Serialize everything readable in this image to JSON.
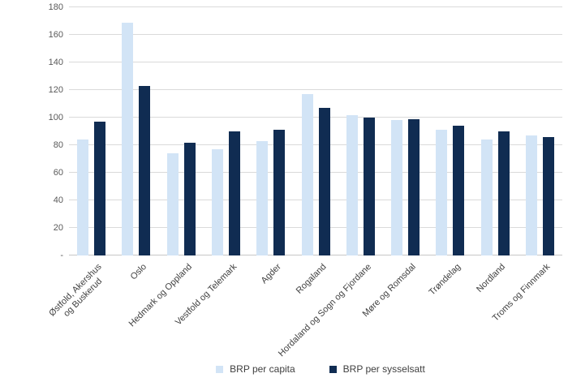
{
  "chart_data": {
    "type": "bar",
    "title": "",
    "xlabel": "",
    "ylabel": "",
    "categories": [
      "Østfold, Akershus\nog Buskerud",
      "Oslo",
      "Hedmark og Oppland",
      "Vestfold og Telemark",
      "Agder",
      "Rogaland",
      "Hordaland og Sogn og Fjordane",
      "Møre og Romsdal",
      "Trøndelag",
      "Nordland",
      "Troms og Finnmark"
    ],
    "series": [
      {
        "name": "BRP per capita",
        "color": "#d2e4f6",
        "values": [
          84,
          169,
          74,
          77,
          83,
          117,
          102,
          98,
          91,
          84,
          87
        ]
      },
      {
        "name": "BRP per sysselsatt",
        "color": "#102c52",
        "values": [
          97,
          123,
          82,
          90,
          91,
          107,
          100,
          99,
          94,
          90,
          86
        ]
      }
    ],
    "ylim": [
      0,
      180
    ],
    "ytick_step": 20,
    "ytick_labels": [
      "180",
      "160",
      "140",
      "120",
      "100",
      "80",
      "60",
      "40",
      "20",
      "-"
    ],
    "grid": true,
    "legend_position": "bottom"
  },
  "style": {
    "gridline_color": "#dadada",
    "baseline_color": "#c6c6c6",
    "ytick_color": "#595959",
    "xlabel_color": "#404040",
    "legend_text_color": "#404040",
    "background": "#ffffff"
  }
}
